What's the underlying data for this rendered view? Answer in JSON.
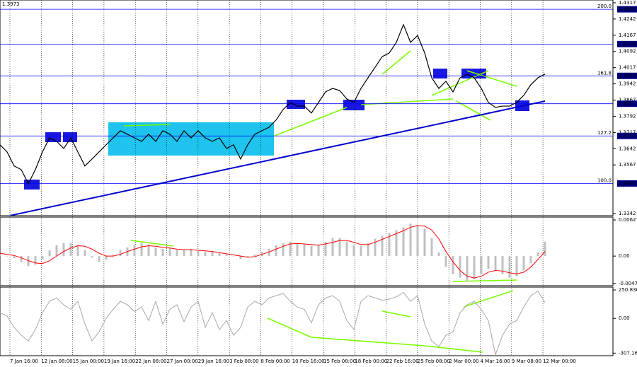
{
  "chart_data": [
    {
      "type": "line",
      "price_label": "1.3973",
      "color": "#000000",
      "values": [
        1.366,
        1.3627,
        1.3562,
        1.3545,
        1.348,
        1.3545,
        1.3627,
        1.3692,
        1.3676,
        1.3643,
        1.3692,
        1.3627,
        1.3562,
        1.3594,
        1.3627,
        1.366,
        1.3692,
        1.3725,
        1.3709,
        1.3692,
        1.3676,
        1.3709,
        1.3676,
        1.3725,
        1.3709,
        1.3676,
        1.3725,
        1.3692,
        1.3725,
        1.3692,
        1.3676,
        1.3692,
        1.3643,
        1.366,
        1.3594,
        1.366,
        1.3709,
        1.3725,
        1.3741,
        1.3774,
        1.3823,
        1.3856,
        1.3839,
        1.3839,
        1.3807,
        1.3856,
        1.3905,
        1.3921,
        1.3911,
        1.3872,
        1.3856,
        1.3921,
        1.397,
        1.4019,
        1.4068,
        1.4085,
        1.4134,
        1.4216,
        1.4134,
        1.4166,
        1.4085,
        1.397,
        1.3921,
        1.3954,
        1.3905,
        1.397,
        1.3987,
        1.397,
        1.3921,
        1.3856,
        1.3833,
        1.3839,
        1.3839,
        1.3856,
        1.3889,
        1.3938,
        1.397,
        1.3987
      ],
      "ylim": [
        1.3332,
        1.433
      ],
      "yticks": [
        1.4317,
        1.4242,
        1.4167,
        1.4092,
        1.4017,
        1.3942,
        1.3867,
        1.3792,
        1.3717,
        1.3642,
        1.3567,
        1.3342
      ],
      "levels": [
        {
          "value": 1.4287,
          "label": "200.0"
        },
        {
          "value": 1.4126
        },
        {
          "value": 1.3979,
          "label": "161.8"
        },
        {
          "value": 1.385
        },
        {
          "value": 1.3701,
          "label": "127.2"
        },
        {
          "value": 1.3481,
          "label": "100.0"
        }
      ],
      "level_color": "#0000ff",
      "trend_line": [
        1.3333,
        1.3862
      ],
      "trend_color": "#0000cd"
    },
    {
      "type": "bar",
      "color": "#c0c0c0",
      "values": [
        0.00025,
        0,
        -0.00038,
        -0.001,
        -0.00175,
        -0.0015,
        -0.0005,
        0.001,
        0.00188,
        0.00225,
        0.00225,
        0.00188,
        0.001,
        -0.00025,
        -0.001,
        -0.00063,
        0.00025,
        0.001,
        0.0015,
        0.00188,
        0.00225,
        0.002,
        0.0015,
        0.00125,
        0.0015,
        0.001,
        0.001,
        0.00125,
        0.001,
        0.00075,
        0.00075,
        0.0005,
        0.00025,
        0,
        -0.0005,
        -0.00025,
        0.00025,
        0.00075,
        0.00125,
        0.00188,
        0.00225,
        0.0025,
        0.00225,
        0.002,
        0.00175,
        0.002,
        0.0025,
        0.00313,
        0.00313,
        0.0025,
        0.00188,
        0.00175,
        0.00225,
        0.003,
        0.0035,
        0.004,
        0.0045,
        0.005,
        0.00563,
        0.00525,
        0.00475,
        0.00313,
        0.00063,
        -0.00188,
        -0.00313,
        -0.00375,
        -0.00438,
        -0.004,
        -0.00313,
        -0.00225,
        -0.0025,
        -0.00313,
        -0.00375,
        -0.0035,
        -0.0025,
        -0.00125,
        0.00063,
        0.0025
      ],
      "signal": [
        0.0005,
        0.0003,
        0.0001,
        -0.0003,
        -0.0008,
        -0.0012,
        -0.0013,
        -0.0008,
        0,
        0.0008,
        0.0014,
        0.0018,
        0.0017,
        0.0012,
        0.0005,
        0,
        0,
        0.0003,
        0.0008,
        0.0012,
        0.0016,
        0.0018,
        0.0017,
        0.0015,
        0.0014,
        0.0012,
        0.0011,
        0.0011,
        0.001,
        0.0009,
        0.0008,
        0.0006,
        0.0004,
        0.0002,
        0,
        -0.0002,
        -0.0001,
        0.0003,
        0.0007,
        0.0012,
        0.0017,
        0.0021,
        0.0022,
        0.0021,
        0.002,
        0.0019,
        0.0021,
        0.0024,
        0.0027,
        0.0027,
        0.0024,
        0.002,
        0.002,
        0.0024,
        0.0029,
        0.0034,
        0.0039,
        0.0044,
        0.005,
        0.0053,
        0.0052,
        0.0045,
        0.003,
        0.0008,
        -0.001,
        -0.0025,
        -0.0035,
        -0.0038,
        -0.0035,
        -0.0028,
        -0.0025,
        -0.0026,
        -0.0029,
        -0.0031,
        -0.0028,
        -0.0019,
        -0.0006,
        0.0008
      ],
      "signal_color": "#ff0000",
      "ylim": [
        -0.00514,
        0.00677
      ],
      "yticks": [
        0.00627,
        {
          "value": 0,
          "label": "0.00"
        },
        -0.00475
      ]
    },
    {
      "type": "line",
      "color": "#a8a8a8",
      "values": [
        50,
        20,
        -80,
        -150,
        -200,
        -100,
        50,
        150,
        180,
        120,
        80,
        150,
        -50,
        -200,
        -120,
        0,
        80,
        150,
        120,
        60,
        100,
        -20,
        150,
        -50,
        80,
        120,
        -30,
        100,
        150,
        -80,
        50,
        -100,
        -20,
        -150,
        -80,
        100,
        150,
        120,
        180,
        200,
        220,
        150,
        100,
        80,
        -40,
        120,
        180,
        200,
        150,
        -20,
        -100,
        150,
        200,
        180,
        160,
        170,
        190,
        230,
        150,
        200,
        -50,
        -200,
        -250,
        -150,
        -120,
        50,
        120,
        150,
        80,
        -20,
        -320,
        -150,
        -50,
        -20,
        100,
        200,
        240,
        140
      ],
      "ylim": [
        -330,
        276
      ],
      "yticks": [
        250.8365,
        {
          "value": 0,
          "label": "0.00"
        },
        -307.166
      ],
      "x_labels": [
        "7 Jan 16:00",
        "12 Jan 08:00",
        "15 Jan 00:00",
        "19 Jan 16:00",
        "22 Jan 08:00",
        "27 Jan 00:00",
        "29 Jan 16:00",
        "3 Feb 08:00",
        "8 Feb 00:00",
        "10 Feb 16:00",
        "15 Feb 08:00",
        "18 Feb 00:00",
        "22 Feb 16:00",
        "25 Feb 08:00",
        "2 Mar 00:00",
        "4 Mar 16:00",
        "9 Mar 08:00",
        "12 Mar 00:00"
      ]
    }
  ]
}
